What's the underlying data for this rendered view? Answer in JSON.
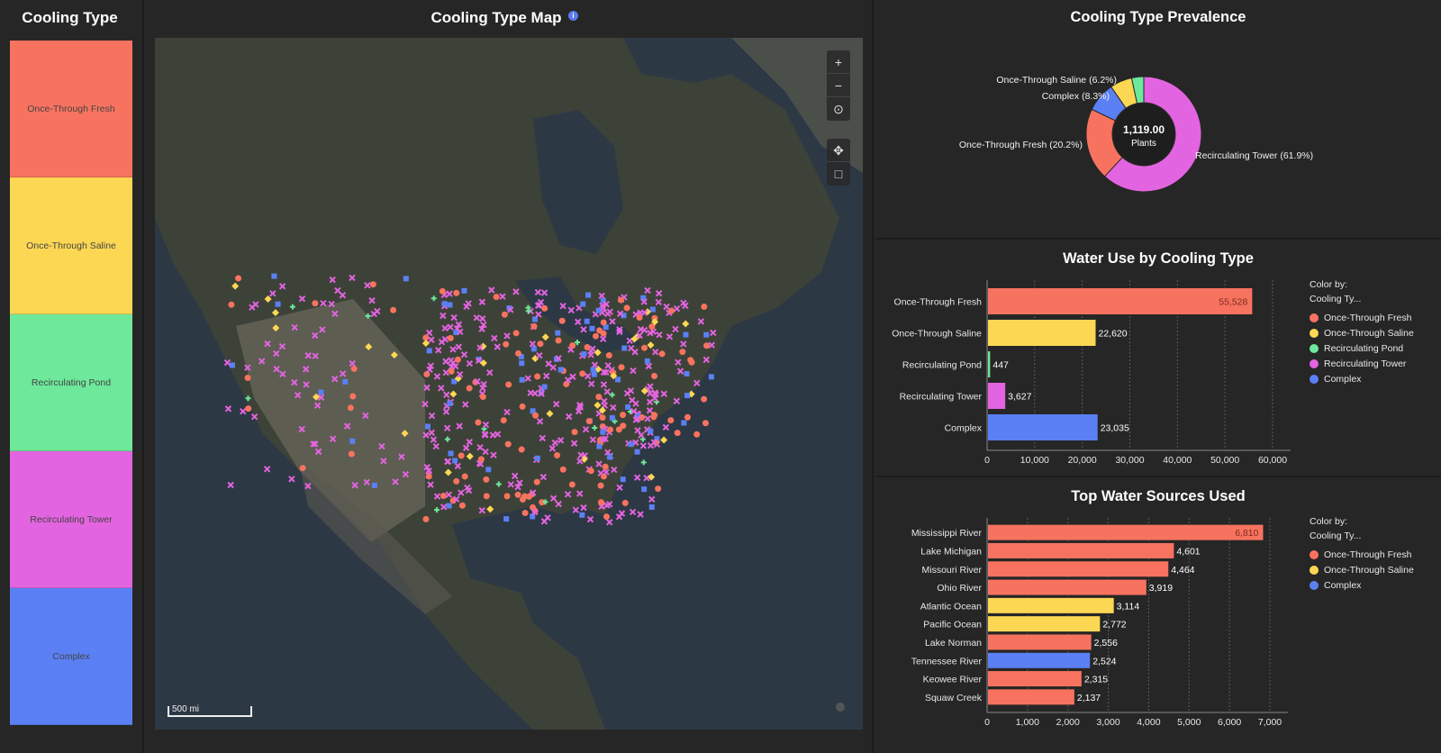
{
  "filter_panel": {
    "title": "Cooling Type",
    "items": [
      {
        "label": "Once-Through Fresh",
        "color": "#f8735f"
      },
      {
        "label": "Once-Through Saline",
        "color": "#fcd753"
      },
      {
        "label": "Recirculating Pond",
        "color": "#6ee89a"
      },
      {
        "label": "Recirculating Tower",
        "color": "#e364e0"
      },
      {
        "label": "Complex",
        "color": "#5b80f4"
      }
    ]
  },
  "map": {
    "title": "Cooling Type Map",
    "info_icon": "info-icon",
    "controls": [
      "+",
      "−",
      "⊙",
      "✥",
      "□"
    ],
    "scale_label": "500 mi"
  },
  "prevalence": {
    "title": "Cooling Type Prevalence",
    "center_value": "1,119.00",
    "center_label": "Plants"
  },
  "water_use": {
    "title": "Water Use by Cooling Type",
    "legend_title": "Color by:",
    "legend_subtitle": "Cooling Ty...",
    "legend_items": [
      {
        "label": "Once-Through Fresh",
        "color": "#f8735f"
      },
      {
        "label": "Once-Through Saline",
        "color": "#fcd753"
      },
      {
        "label": "Recirculating Pond",
        "color": "#6ee89a"
      },
      {
        "label": "Recirculating Tower",
        "color": "#e364e0"
      },
      {
        "label": "Complex",
        "color": "#5b80f4"
      }
    ]
  },
  "top_sources": {
    "title": "Top Water Sources Used",
    "legend_title": "Color by:",
    "legend_subtitle": "Cooling Ty...",
    "legend_items": [
      {
        "label": "Once-Through Fresh",
        "color": "#f8735f"
      },
      {
        "label": "Once-Through Saline",
        "color": "#fcd753"
      },
      {
        "label": "Complex",
        "color": "#5b80f4"
      }
    ]
  },
  "chart_data": [
    {
      "type": "pie",
      "title": "Cooling Type Prevalence",
      "slices": [
        {
          "label": "Recirculating Tower (61.9%)",
          "value": 61.9,
          "color": "#e364e0"
        },
        {
          "label": "Once-Through Fresh (20.2%)",
          "value": 20.2,
          "color": "#f8735f"
        },
        {
          "label": "Complex (8.3%)",
          "value": 8.3,
          "color": "#5b80f4"
        },
        {
          "label": "Once-Through Saline (6.2%)",
          "value": 6.2,
          "color": "#fcd753"
        },
        {
          "label": "",
          "value": 3.4,
          "color": "#6ee89a"
        }
      ]
    },
    {
      "type": "bar",
      "title": "Water Use by Cooling Type",
      "categories": [
        "Once-Through Fresh",
        "Once-Through Saline",
        "Recirculating Pond",
        "Recirculating Tower",
        "Complex"
      ],
      "values": [
        55528,
        22620,
        447,
        3627,
        23035
      ],
      "value_labels": [
        "55,528",
        "22,620",
        "447",
        "3,627",
        "23,035"
      ],
      "colors": [
        "#f8735f",
        "#fcd753",
        "#6ee89a",
        "#e364e0",
        "#5b80f4"
      ],
      "xlim": [
        0,
        60000
      ],
      "ticks": [
        "0",
        "10,000",
        "20,000",
        "30,000",
        "40,000",
        "50,000",
        "60,000"
      ]
    },
    {
      "type": "bar",
      "title": "Top Water Sources Used",
      "categories": [
        "Mississippi River",
        "Lake Michigan",
        "Missouri River",
        "Ohio River",
        "Atlantic Ocean",
        "Pacific Ocean",
        "Lake Norman",
        "Tennessee River",
        "Keowee River",
        "Squaw Creek"
      ],
      "values": [
        6810,
        4601,
        4464,
        3919,
        3114,
        2772,
        2556,
        2524,
        2315,
        2137
      ],
      "value_labels": [
        "6,810",
        "4,601",
        "4,464",
        "3,919",
        "3,114",
        "2,772",
        "2,556",
        "2,524",
        "2,315",
        "2,137"
      ],
      "colors": [
        "#f8735f",
        "#f8735f",
        "#f8735f",
        "#f8735f",
        "#fcd753",
        "#fcd753",
        "#f8735f",
        "#5b80f4",
        "#f8735f",
        "#f8735f"
      ],
      "xlim": [
        0,
        7000
      ],
      "ticks": [
        "0",
        "1,000",
        "2,000",
        "3,000",
        "4,000",
        "5,000",
        "6,000",
        "7,000"
      ]
    }
  ]
}
